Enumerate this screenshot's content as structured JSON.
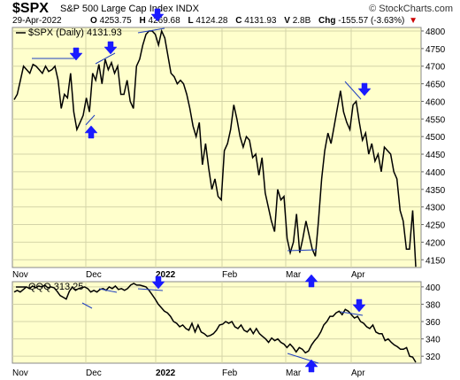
{
  "header": {
    "symbol": "$SPX",
    "name": "S&P 500 Large Cap Index  INDX",
    "watermark": "© StockCharts.com",
    "date": "29-Apr-2022",
    "open_label": "O",
    "open": "4253.75",
    "high_label": "H",
    "high": "4269.68",
    "low_label": "L",
    "low": "4124.28",
    "close_label": "C",
    "close": "4131.93",
    "volume_label": "V",
    "volume": "2.8B",
    "change_label": "Chg",
    "change": "-155.57 (-3.63%)",
    "down_marker": "▼"
  },
  "colors": {
    "panel_bg": "#ffffcc",
    "grid": "#d4d4a8",
    "line": "#000000",
    "trend": "#1f3fbf",
    "arrow": "#1a1aff"
  },
  "chart_data": [
    {
      "type": "line",
      "legend": "$SPX (Daily) 4131.93",
      "x_ticks": [
        "Nov",
        "Dec",
        "2022",
        "Feb",
        "Mar",
        "Apr"
      ],
      "y_ticks": [
        4150,
        4200,
        4250,
        4300,
        4350,
        4400,
        4450,
        4500,
        4550,
        4600,
        4650,
        4700,
        4750,
        4800
      ],
      "ylim": [
        4128,
        4810
      ],
      "grid": true,
      "series": [
        {
          "values": [
            4605,
            4620,
            4660,
            4700,
            4690,
            4680,
            4705,
            4700,
            4690,
            4680,
            4700,
            4685,
            4690,
            4700,
            4660,
            4580,
            4620,
            4610,
            4680,
            4570,
            4520,
            4540,
            4560,
            4610,
            4570,
            4680,
            4660,
            4705,
            4650,
            4720,
            4690,
            4710,
            4680,
            4700,
            4620,
            4620,
            4660,
            4600,
            4580,
            4700,
            4720,
            4760,
            4790,
            4800,
            4800,
            4790,
            4760,
            4800,
            4780,
            4730,
            4680,
            4670,
            4650,
            4660,
            4650,
            4620,
            4580,
            4530,
            4500,
            4540,
            4420,
            4480,
            4410,
            4350,
            4380,
            4330,
            4320,
            4460,
            4480,
            4520,
            4590,
            4550,
            4500,
            4470,
            4500,
            4490,
            4440,
            4450,
            4390,
            4440,
            4340,
            4300,
            4260,
            4230,
            4350,
            4320,
            4330,
            4210,
            4170,
            4200,
            4280,
            4170,
            4210,
            4260,
            4220,
            4180,
            4160,
            4260,
            4380,
            4460,
            4510,
            4480,
            4530,
            4580,
            4630,
            4570,
            4540,
            4520,
            4590,
            4600,
            4540,
            4490,
            4510,
            4450,
            4480,
            4430,
            4450,
            4400,
            4470,
            4460,
            4450,
            4400,
            4380,
            4290,
            4260,
            4180,
            4180,
            4290,
            4130
          ]
        }
      ]
    },
    {
      "type": "line",
      "legend": "QQQ 313.25",
      "x_ticks": [
        "Nov",
        "Dec",
        "2022",
        "Feb",
        "Mar",
        "Apr"
      ],
      "y_ticks": [
        320,
        340,
        360,
        380,
        400
      ],
      "ylim": [
        312,
        406
      ],
      "grid": true,
      "series": [
        {
          "values": [
            394,
            396,
            394,
            397,
            400,
            398,
            401,
            399,
            401,
            400,
            402,
            399,
            400,
            399,
            395,
            390,
            388,
            386,
            395,
            400,
            396,
            398,
            399,
            400,
            398,
            394,
            396,
            394,
            397,
            398,
            396,
            400,
            398,
            401,
            397,
            398,
            396,
            398,
            402,
            404,
            402,
            402,
            401,
            400,
            396,
            391,
            386,
            380,
            376,
            372,
            370,
            366,
            360,
            358,
            354,
            356,
            352,
            350,
            358,
            348,
            356,
            348,
            346,
            343,
            344,
            346,
            350,
            356,
            357,
            360,
            358,
            360,
            354,
            352,
            356,
            350,
            348,
            352,
            346,
            352,
            346,
            343,
            340,
            336,
            341,
            338,
            340,
            336,
            334,
            330,
            334,
            330,
            325,
            330,
            328,
            324,
            326,
            333,
            338,
            342,
            348,
            356,
            360,
            366,
            366,
            370,
            372,
            368,
            374,
            372,
            368,
            364,
            366,
            360,
            358,
            354,
            352,
            356,
            348,
            346,
            346,
            338,
            340,
            336,
            333,
            331,
            328,
            328,
            330,
            320,
            319,
            313
          ]
        }
      ]
    }
  ]
}
